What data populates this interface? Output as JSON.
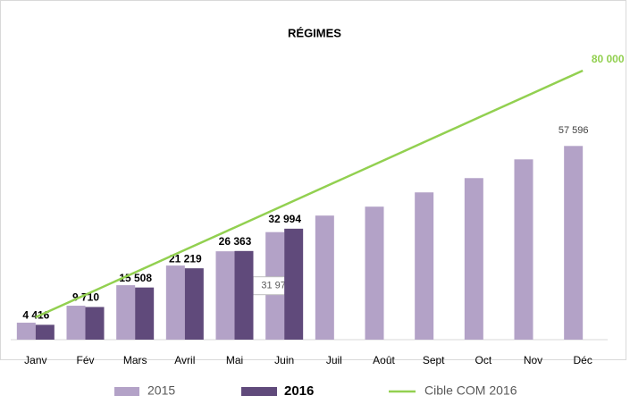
{
  "chart_data": {
    "type": "bar_line",
    "title": "RÉGIMES",
    "categories": [
      "Janv",
      "Fév",
      "Mars",
      "Avril",
      "Mai",
      "Juin",
      "Juil",
      "Août",
      "Sept",
      "Oct",
      "Nov",
      "Déc"
    ],
    "series": [
      {
        "name": "2015",
        "type": "bar",
        "color": "#b3a2c7",
        "values": [
          5042,
          10085,
          16189,
          22028,
          26274,
          31976,
          36890,
          39544,
          43790,
          48036,
          53609,
          57596
        ],
        "value_labels": [
          null,
          null,
          null,
          null,
          null,
          "31 976",
          null,
          null,
          null,
          null,
          null,
          "57 596"
        ]
      },
      {
        "name": "2016",
        "type": "bar",
        "color": "#604a7b",
        "values": [
          4416,
          9710,
          15508,
          21219,
          26363,
          32994,
          null,
          null,
          null,
          null,
          null,
          null
        ],
        "value_labels": [
          "4 416",
          "9 710",
          "15 508",
          "21 219",
          "26 363",
          "32 994",
          null,
          null,
          null,
          null,
          null,
          null
        ]
      },
      {
        "name": "Cible COM 2016",
        "type": "line",
        "color": "#92d050",
        "values": [
          6667,
          13333,
          20000,
          26667,
          33333,
          40000,
          46667,
          53333,
          60000,
          66667,
          73333,
          80000
        ],
        "value_labels": [
          null,
          null,
          null,
          null,
          null,
          null,
          null,
          null,
          null,
          null,
          null,
          "80 000"
        ]
      }
    ],
    "legend": "bottom"
  }
}
